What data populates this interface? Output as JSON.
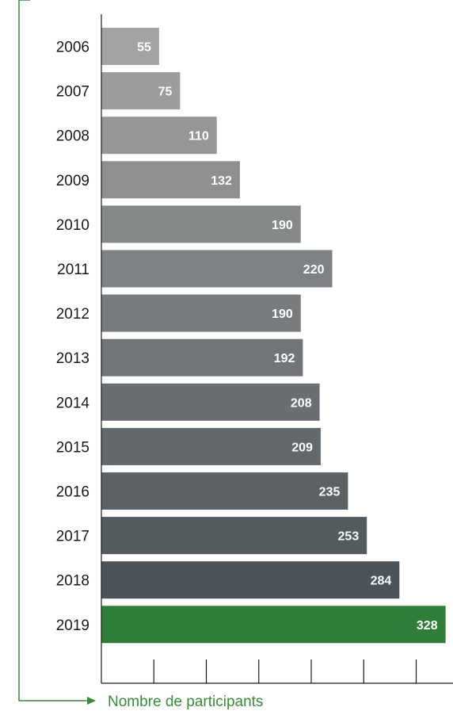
{
  "chart_data": {
    "type": "bar",
    "orientation": "horizontal",
    "categories": [
      "2006",
      "2007",
      "2008",
      "2009",
      "2010",
      "2011",
      "2012",
      "2013",
      "2014",
      "2015",
      "2016",
      "2017",
      "2018",
      "2019"
    ],
    "values": [
      55,
      75,
      110,
      132,
      190,
      220,
      190,
      192,
      208,
      209,
      235,
      253,
      284,
      328
    ],
    "value_labels": [
      "55",
      "75",
      "110",
      "132",
      "190",
      "220",
      "190",
      "192",
      "208",
      "209",
      "235",
      "253",
      "284",
      "328"
    ],
    "title": "",
    "xlabel": "Nombre de participants",
    "ylabel": "",
    "xlim": [
      0,
      350
    ],
    "x_ticks": [
      50,
      100,
      150,
      200,
      250,
      300
    ],
    "grid": false,
    "legend": "none",
    "colors": {
      "bar_gradient_light": "#a3a3a3",
      "bar_gradient_dark": "#4d5459",
      "highlight": "#2f7d37",
      "accent_green": "#3a8a3c",
      "axis": "#1a1a1a"
    }
  }
}
